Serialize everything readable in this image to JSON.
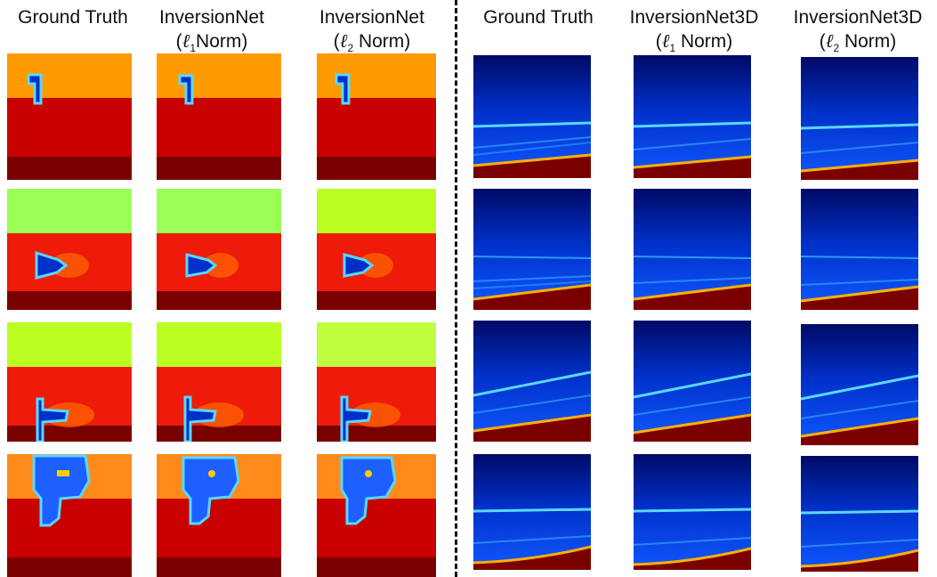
{
  "left": {
    "headers": [
      {
        "title": "Ground Truth",
        "sub": ""
      },
      {
        "title": "InversionNet",
        "sub_open": "(",
        "sub_sym": "ℓ",
        "sub_idx": "1",
        "sub_close": "Norm)"
      },
      {
        "title": "InversionNet",
        "sub_open": "(",
        "sub_sym": "ℓ",
        "sub_idx": "2",
        "sub_close": " Norm)"
      }
    ]
  },
  "right": {
    "headers": [
      {
        "title": "Ground Truth",
        "sub": ""
      },
      {
        "title": "InversionNet3D",
        "sub_open": "(",
        "sub_sym": "ℓ",
        "sub_idx": "1",
        "sub_close": " Norm)"
      },
      {
        "title": "InversionNet3D",
        "sub_open": "(",
        "sub_sym": "ℓ",
        "sub_idx": "2",
        "sub_close": " Norm)"
      }
    ]
  },
  "colors": {
    "orange": "#ff9a00",
    "red": "#c80000",
    "brightRed": "#ee1a0a",
    "darkRed": "#7a0000",
    "green": "#99ff55",
    "yellowGreen": "#bbff22",
    "blue": "#0030c8",
    "navy": "#000a66",
    "cyan": "#5ad8ff"
  }
}
